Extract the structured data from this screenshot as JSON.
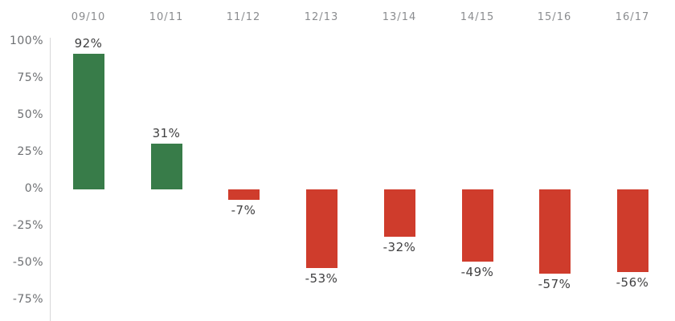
{
  "chart_data": {
    "type": "bar",
    "title": "",
    "xlabel": "",
    "ylabel": "",
    "categories": [
      "09/10",
      "10/11",
      "11/12",
      "12/13",
      "13/14",
      "14/15",
      "15/16",
      "16/17"
    ],
    "values": [
      92,
      31,
      -7,
      -53,
      -32,
      -49,
      -57,
      -56
    ],
    "value_labels": [
      "92%",
      "31%",
      "-7%",
      "-53%",
      "-32%",
      "-49%",
      "-57%",
      "-56%"
    ],
    "y_ticks": [
      {
        "value": 100,
        "label": "100%"
      },
      {
        "value": 75,
        "label": "75%"
      },
      {
        "value": 50,
        "label": "50%"
      },
      {
        "value": 25,
        "label": "25%"
      },
      {
        "value": 0,
        "label": "0%"
      },
      {
        "value": -25,
        "label": "-25%"
      },
      {
        "value": -50,
        "label": "-50%"
      },
      {
        "value": -75,
        "label": "-75%"
      }
    ],
    "ylim": [
      -90,
      102
    ],
    "grid": false,
    "legend": null,
    "category_labels_position": "top",
    "positive_color": "#387c49",
    "negative_color": "#cf3c2c",
    "axis_line_color": "#d7d7d8",
    "category_label_color": "#8a8c8f",
    "ytick_label_color": "#6d6f72",
    "value_label_color": "#404041"
  }
}
